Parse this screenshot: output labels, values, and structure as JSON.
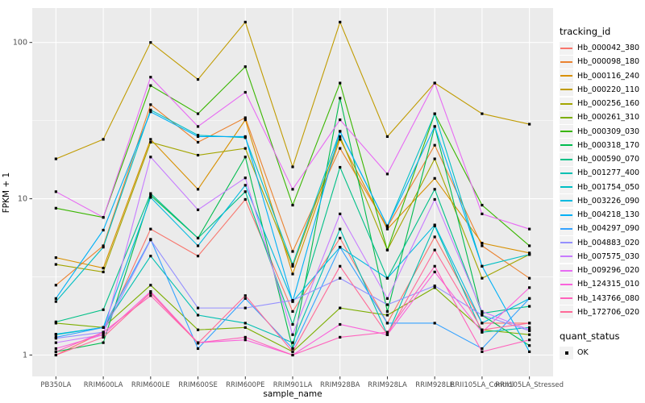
{
  "chart_data": {
    "type": "line",
    "title": "",
    "xlabel": "sample_name",
    "ylabel": "FPKM + 1",
    "y_scale": "log10",
    "y_ticks": [
      1,
      10,
      100
    ],
    "y_minor_ticks": [
      3.1623,
      31.623
    ],
    "ylim": [
      0.73,
      166
    ],
    "grid": true,
    "panel_bg": "#EBEBEB",
    "grid_color": "#FFFFFF",
    "tick_label_color": "#4D4D4D",
    "marker": "black-square",
    "legend_position": "right",
    "categories": [
      "PB350LA",
      "RRIM600LA",
      "RRIM600LE",
      "RRIM600SE",
      "RRIM600PE",
      "RRIM901LA",
      "RRIM928BA",
      "RRIM928LA",
      "RRIM928LE",
      "RRII105LA_Control",
      "RRII105LA_Stressed"
    ],
    "series": [
      {
        "name": "Hb_000042_380",
        "color": "#F8766D",
        "values": [
          1.0,
          1.4,
          6.4,
          4.3,
          9.9,
          1.9,
          5.6,
          1.6,
          5.7,
          1.6,
          1.6
        ]
      },
      {
        "name": "Hb_000098_180",
        "color": "#EA8331",
        "values": [
          2.8,
          5.0,
          40,
          23,
          33,
          4.6,
          21,
          6.6,
          22,
          5.0,
          3.1
        ]
      },
      {
        "name": "Hb_000116_240",
        "color": "#D89000",
        "values": [
          4.2,
          3.6,
          24,
          11.5,
          32,
          3.3,
          24,
          6.4,
          13.5,
          5.2,
          4.5
        ]
      },
      {
        "name": "Hb_000220_110",
        "color": "#C09B00",
        "values": [
          18,
          24,
          100,
          58,
          135,
          16,
          135,
          25,
          55,
          35,
          30
        ]
      },
      {
        "name": "Hb_000256_160",
        "color": "#A3A500",
        "values": [
          3.8,
          3.4,
          23,
          19,
          21,
          3.7,
          25,
          4.7,
          18,
          3.1,
          4.4
        ]
      },
      {
        "name": "Hb_000261_310",
        "color": "#7CAE00",
        "values": [
          1.6,
          1.5,
          2.8,
          1.45,
          1.5,
          1.05,
          2.0,
          1.8,
          2.7,
          1.45,
          1.35
        ]
      },
      {
        "name": "Hb_000309_030",
        "color": "#39B600",
        "values": [
          8.7,
          7.6,
          53,
          35,
          70,
          9.1,
          55,
          4.7,
          35,
          9.1,
          5.0
        ]
      },
      {
        "name": "Hb_000318_170",
        "color": "#00BB4E",
        "values": [
          1.05,
          1.2,
          10.5,
          5.6,
          18.5,
          1.1,
          44,
          1.9,
          29,
          1.8,
          1.15
        ]
      },
      {
        "name": "Hb_000590_070",
        "color": "#00C087",
        "values": [
          1.63,
          1.95,
          10.8,
          5.6,
          11.1,
          1.57,
          15.9,
          3.1,
          11.5,
          1.85,
          2.05
        ]
      },
      {
        "name": "Hb_001277_400",
        "color": "#00C0B2",
        "values": [
          1.35,
          1.5,
          4.3,
          1.8,
          1.6,
          1.2,
          6.4,
          1.35,
          6.7,
          1.4,
          1.5
        ]
      },
      {
        "name": "Hb_001754_050",
        "color": "#00BFC4",
        "values": [
          2.2,
          4.9,
          37,
          25.5,
          24.6,
          3.8,
          27,
          6.7,
          35,
          3.7,
          4.4
        ]
      },
      {
        "name": "Hb_003226_090",
        "color": "#00BAE0",
        "values": [
          1.36,
          1.5,
          10.2,
          5.0,
          12.2,
          2.2,
          4.9,
          3.1,
          6.8,
          1.6,
          2.3
        ]
      },
      {
        "name": "Hb_004218_130",
        "color": "#00B0F6",
        "values": [
          2.3,
          6.3,
          36,
          25,
          25,
          2.2,
          27,
          6.7,
          29,
          3.7,
          1.05
        ]
      },
      {
        "name": "Hb_004297_090",
        "color": "#35A2FF",
        "values": [
          1.3,
          1.5,
          5.5,
          1.1,
          2.3,
          1.1,
          4.9,
          1.6,
          1.6,
          1.1,
          2.3
        ]
      },
      {
        "name": "Hb_004883_020",
        "color": "#9590FF",
        "values": [
          1.28,
          1.4,
          5.45,
          2.0,
          2.0,
          2.24,
          3.1,
          2.1,
          2.77,
          1.8,
          1.43
        ]
      },
      {
        "name": "Hb_007575_030",
        "color": "#C77CFF",
        "values": [
          1.2,
          1.35,
          18.5,
          8.5,
          13.6,
          1.35,
          8.0,
          2.3,
          9.9,
          1.9,
          1.45
        ]
      },
      {
        "name": "Hb_009296_020",
        "color": "#E76BF3",
        "values": [
          11.1,
          7.6,
          60,
          29,
          48,
          11.5,
          32,
          14.4,
          55,
          8.0,
          6.4
        ]
      },
      {
        "name": "Hb_124315_010",
        "color": "#FA62DB",
        "values": [
          1.1,
          1.35,
          2.55,
          1.2,
          1.25,
          1.0,
          1.57,
          1.35,
          3.4,
          1.4,
          2.7
        ]
      },
      {
        "name": "Hb_143766_080",
        "color": "#FF62BC",
        "values": [
          1.05,
          1.4,
          2.4,
          1.2,
          1.3,
          1.0,
          1.3,
          1.4,
          3.7,
          1.05,
          1.25
        ]
      },
      {
        "name": "Hb_172706_020",
        "color": "#FF6A98",
        "values": [
          1.0,
          1.3,
          2.5,
          1.19,
          2.4,
          1.05,
          3.7,
          1.35,
          4.7,
          1.45,
          1.6
        ]
      }
    ],
    "legend": {
      "title": "tracking_id"
    },
    "quant_legend": {
      "title": "quant_status",
      "label": "OK",
      "symbol": "black-square"
    }
  }
}
